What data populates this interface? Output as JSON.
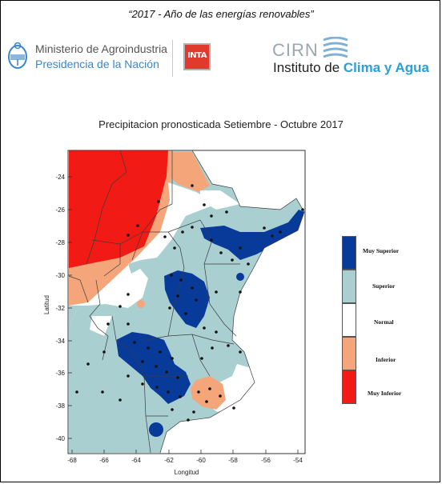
{
  "header": {
    "motto": "“2017 - Año de las energías renovables”",
    "ministerio_line1": "Ministerio de Agroindustria",
    "ministerio_line2": "Presidencia de la Nación",
    "inta_logo": "INTA",
    "cirn_abbr": "CIRN",
    "cirn_name_start": "Instituto de ",
    "cirn_name_highlight": "Clima y Agua"
  },
  "map": {
    "title": "Precipitacion pronosticada Setiembre - Octubre 2017",
    "xlabel": "Longitud",
    "ylabel": "Latitud",
    "x_ticks": [
      "-68",
      "-66",
      "-64",
      "-62",
      "-60",
      "-58",
      "-56",
      "-54"
    ],
    "y_ticks": [
      "-24",
      "-26",
      "-28",
      "-30",
      "-32",
      "-34",
      "-36",
      "-38",
      "-40"
    ],
    "colors": {
      "muy_superior": "#083a9a",
      "superior": "#a9cfd1",
      "normal": "#ffffff",
      "inferior": "#f4a57a",
      "muy_inferior": "#f21a14"
    }
  },
  "legend": {
    "items": [
      {
        "label": "Muy Superior",
        "color": "#083a9a"
      },
      {
        "label": "Superior",
        "color": "#a9cfd1"
      },
      {
        "label": "Normal",
        "color": "#ffffff"
      },
      {
        "label": "Inferior",
        "color": "#f4a57a"
      },
      {
        "label": "Muy Inferior",
        "color": "#f21a14"
      }
    ]
  }
}
